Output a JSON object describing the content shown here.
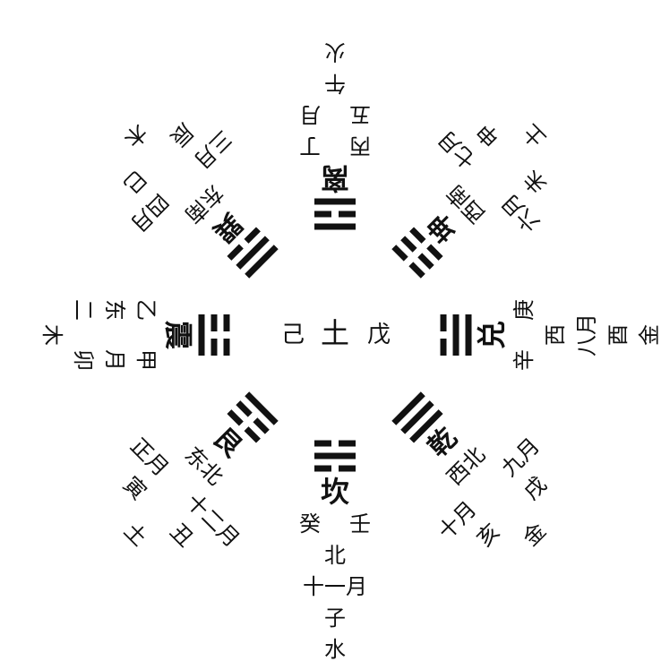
{
  "center": {
    "left": "己",
    "middle": "土",
    "right": "戊"
  },
  "sectors": [
    {
      "id": "kan",
      "trigram_lines": [
        0,
        1,
        0
      ],
      "name": "坎",
      "rows": [
        [
          "癸",
          "壬"
        ],
        [
          "北"
        ],
        [
          "十一月"
        ],
        [
          "子"
        ],
        [
          "水"
        ]
      ]
    },
    {
      "id": "li",
      "trigram_lines": [
        1,
        0,
        1
      ],
      "name": "离",
      "rows": [
        [
          "丙",
          "丁"
        ],
        [
          "五",
          "月"
        ],
        [
          "午"
        ],
        [
          "火"
        ]
      ]
    },
    {
      "id": "zhen",
      "trigram_lines": [
        0,
        0,
        1
      ],
      "name": "震",
      "rows": [
        [
          "乙",
          "甲"
        ],
        [
          "东",
          "月"
        ],
        [
          "二",
          "卯"
        ],
        [
          "木"
        ]
      ]
    },
    {
      "id": "dui",
      "trigram_lines": [
        0,
        1,
        1
      ],
      "name": "兑",
      "rows": [
        [
          "辛",
          "庚"
        ],
        [
          "西"
        ],
        [
          "八月"
        ],
        [
          "酉"
        ],
        [
          "金"
        ]
      ]
    },
    {
      "id": "gen",
      "trigram_lines": [
        1,
        0,
        0
      ],
      "name": "艮",
      "rows": [
        [
          "东北"
        ],
        [
          "正月",
          "十二月"
        ],
        [
          "寅",
          "丑"
        ],
        [
          "土"
        ]
      ]
    },
    {
      "id": "qian",
      "trigram_lines": [
        1,
        1,
        1
      ],
      "name": "乾",
      "rows": [
        [
          "西北"
        ],
        [
          "十月",
          "九月"
        ],
        [
          "亥",
          "戌"
        ],
        [
          "金"
        ]
      ]
    },
    {
      "id": "xun",
      "trigram_lines": [
        1,
        1,
        0
      ],
      "name": "巽",
      "rows": [
        [
          "东南"
        ],
        [
          "三月",
          "四月"
        ],
        [
          "辰",
          "巳"
        ],
        [
          "木"
        ]
      ]
    },
    {
      "id": "kun",
      "trigram_lines": [
        0,
        0,
        0
      ],
      "name": "坤",
      "rows": [
        [
          "西南"
        ],
        [
          "六月",
          "七月"
        ],
        [
          "未",
          "申"
        ],
        [
          "土"
        ]
      ]
    }
  ]
}
